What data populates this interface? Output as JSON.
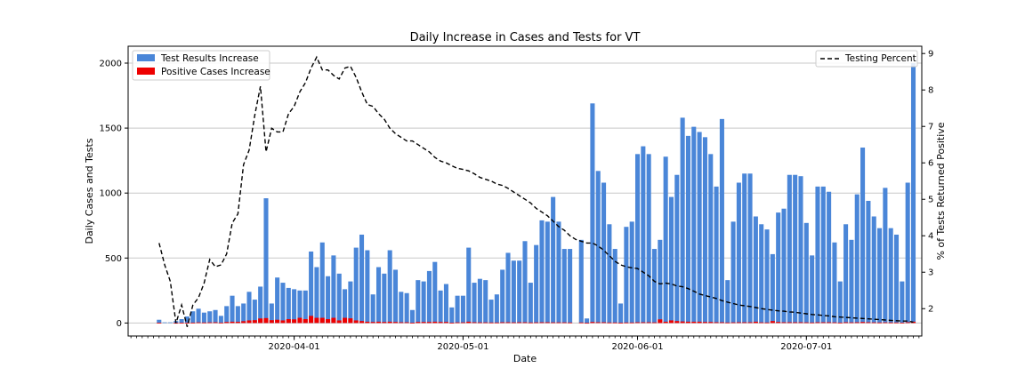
{
  "chart_data": {
    "type": "bar",
    "title": "Daily Increase in Cases and Tests for VT",
    "xlabel": "Date",
    "ylabel": "Daily Cases and Tests",
    "ylabel_right": "% of Tests Returned Positive",
    "ylim": [
      -100,
      2130
    ],
    "ylim_right": [
      1.25,
      9.2
    ],
    "yticks": [
      "0",
      "500",
      "1000",
      "1500",
      "2000"
    ],
    "yticks_right": [
      "2",
      "3",
      "4",
      "5",
      "6",
      "7",
      "8",
      "9"
    ],
    "xticks": [
      "2020-04-01",
      "2020-05-01",
      "2020-06-01",
      "2020-07-01"
    ],
    "xtick_dates": [
      "2020-04-01",
      "2020-05-01",
      "2020-06-01",
      "2020-07-01"
    ],
    "start_date": "2020-03-08",
    "grid": "y",
    "legend_left": "top-left",
    "legend_right": "top-right",
    "colors": {
      "tests": "#4a86d8",
      "positive": "#ee0000",
      "line": "#000000"
    },
    "series": [
      {
        "name": "Test Results Increase",
        "values": [
          25,
          5,
          5,
          15,
          30,
          50,
          90,
          110,
          80,
          90,
          100,
          55,
          130,
          210,
          130,
          150,
          240,
          180,
          280,
          960,
          150,
          350,
          310,
          270,
          260,
          250,
          250,
          550,
          430,
          620,
          360,
          520,
          380,
          260,
          320,
          580,
          680,
          560,
          220,
          430,
          380,
          560,
          410,
          240,
          230,
          100,
          330,
          320,
          400,
          470,
          250,
          300,
          120,
          210,
          210,
          580,
          310,
          340,
          330,
          180,
          220,
          410,
          540,
          480,
          480,
          630,
          310,
          600,
          790,
          780,
          970,
          780,
          570,
          570,
          0,
          640,
          35,
          1690,
          1170,
          1080,
          760,
          570,
          150,
          740,
          780,
          1300,
          1360,
          1300,
          570,
          640,
          1280,
          970,
          1140,
          1580,
          1440,
          1510,
          1470,
          1430,
          1300,
          1050,
          1570,
          330,
          780,
          1080,
          1150,
          1150,
          820,
          760,
          720,
          530,
          850,
          880,
          1140,
          1140,
          1130,
          770,
          520,
          1050,
          1050,
          1010,
          620,
          320,
          760,
          640,
          990,
          1350,
          940,
          820,
          730,
          1040,
          730,
          680,
          320,
          1080,
          2000
        ]
      },
      {
        "name": "Positive Cases Increase",
        "values": [
          2,
          0,
          0,
          1,
          2,
          2,
          3,
          5,
          4,
          5,
          6,
          3,
          8,
          10,
          9,
          14,
          20,
          22,
          35,
          38,
          22,
          25,
          20,
          30,
          28,
          40,
          30,
          55,
          40,
          40,
          30,
          40,
          20,
          40,
          36,
          20,
          15,
          10,
          8,
          10,
          8,
          10,
          8,
          6,
          6,
          2,
          8,
          8,
          8,
          10,
          8,
          8,
          2,
          5,
          5,
          10,
          6,
          5,
          5,
          4,
          4,
          6,
          6,
          5,
          6,
          6,
          4,
          5,
          6,
          6,
          5,
          5,
          5,
          4,
          0,
          4,
          1,
          8,
          6,
          6,
          4,
          4,
          2,
          4,
          4,
          6,
          6,
          6,
          5,
          28,
          10,
          20,
          15,
          12,
          10,
          10,
          10,
          8,
          8,
          6,
          6,
          4,
          5,
          6,
          6,
          6,
          10,
          5,
          4,
          15,
          8,
          6,
          6,
          6,
          6,
          5,
          4,
          6,
          6,
          6,
          5,
          3,
          6,
          5,
          6,
          8,
          6,
          5,
          4,
          5,
          4,
          4,
          3,
          6,
          10
        ]
      },
      {
        "name": "Testing Percent",
        "values": [
          3.8,
          3.2,
          2.75,
          1.6,
          2.1,
          1.5,
          2.1,
          2.3,
          2.7,
          3.35,
          3.15,
          3.2,
          3.5,
          4.35,
          4.6,
          5.95,
          6.35,
          7.3,
          8.1,
          6.3,
          6.95,
          6.85,
          6.85,
          7.35,
          7.55,
          7.95,
          8.2,
          8.6,
          8.9,
          8.55,
          8.55,
          8.4,
          8.3,
          8.6,
          8.65,
          8.35,
          7.95,
          7.6,
          7.55,
          7.35,
          7.2,
          6.95,
          6.8,
          6.7,
          6.6,
          6.6,
          6.5,
          6.4,
          6.3,
          6.15,
          6.05,
          6.0,
          5.92,
          5.85,
          5.82,
          5.78,
          5.7,
          5.6,
          5.55,
          5.5,
          5.42,
          5.38,
          5.3,
          5.2,
          5.1,
          5.0,
          4.9,
          4.75,
          4.65,
          4.55,
          4.4,
          4.25,
          4.15,
          4.0,
          3.9,
          3.85,
          3.8,
          3.8,
          3.72,
          3.6,
          3.45,
          3.3,
          3.2,
          3.15,
          3.12,
          3.1,
          3.0,
          2.9,
          2.75,
          2.68,
          2.7,
          2.68,
          2.62,
          2.6,
          2.55,
          2.48,
          2.4,
          2.36,
          2.32,
          2.28,
          2.22,
          2.18,
          2.14,
          2.1,
          2.08,
          2.06,
          2.03,
          2.0,
          1.98,
          1.96,
          1.94,
          1.93,
          1.91,
          1.9,
          1.88,
          1.86,
          1.84,
          1.83,
          1.81,
          1.8,
          1.78,
          1.77,
          1.76,
          1.75,
          1.74,
          1.73,
          1.72,
          1.71,
          1.7,
          1.69,
          1.68,
          1.67,
          1.66,
          1.66,
          1.63
        ]
      }
    ]
  }
}
